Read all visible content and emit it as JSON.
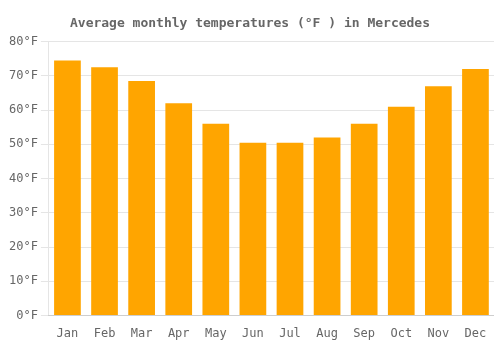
{
  "chart_data": {
    "type": "bar",
    "title": "Average monthly temperatures (°F ) in Mercedes",
    "categories": [
      "Jan",
      "Feb",
      "Mar",
      "Apr",
      "May",
      "Jun",
      "Jul",
      "Aug",
      "Sep",
      "Oct",
      "Nov",
      "Dec"
    ],
    "values": [
      74.5,
      72.5,
      68.5,
      62,
      56,
      50.5,
      50.5,
      52,
      56,
      61,
      67,
      72
    ],
    "color": "#FFA500",
    "ylim": [
      0,
      80
    ],
    "yticks": [
      {
        "value": 0,
        "label": "0°F"
      },
      {
        "value": 10,
        "label": "10°F"
      },
      {
        "value": 20,
        "label": "20°F"
      },
      {
        "value": 30,
        "label": "30°F"
      },
      {
        "value": 40,
        "label": "40°F"
      },
      {
        "value": 50,
        "label": "50°F"
      },
      {
        "value": 60,
        "label": "60°F"
      },
      {
        "value": 70,
        "label": "70°F"
      },
      {
        "value": 80,
        "label": "80°F"
      }
    ],
    "grid": true
  }
}
